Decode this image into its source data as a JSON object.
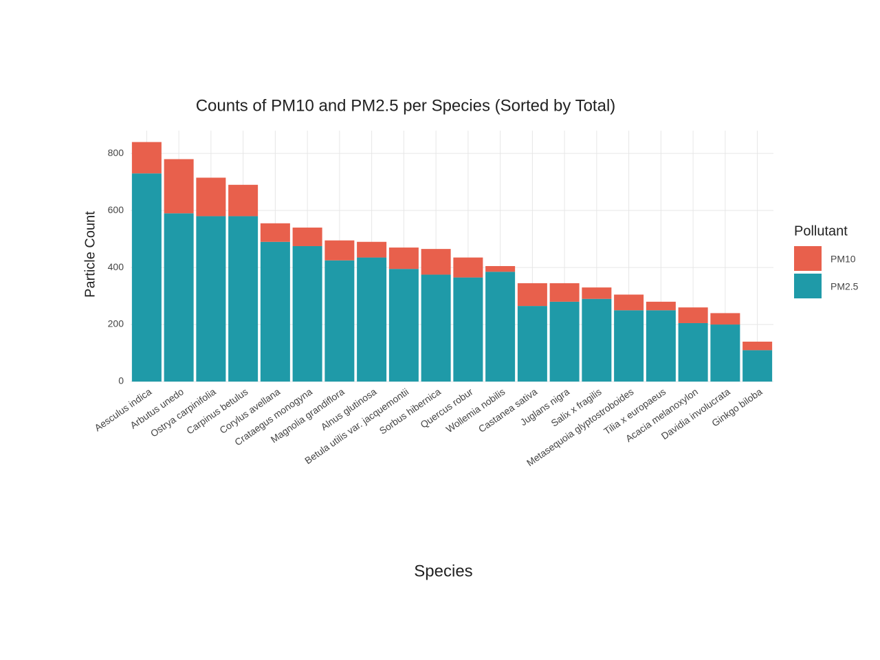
{
  "chart_data": {
    "type": "stacked_bar",
    "title": "Counts of PM10 and PM2.5 per Species (Sorted by Total)",
    "x_label": "Species",
    "y_label": "Particle Count",
    "legend_title": "Pollutant",
    "categories": [
      "Aesculus indica",
      "Arbutus unedo",
      "Ostrya carpinifolia",
      "Carpinus betulus",
      "Corylus avellana",
      "Crataegus monogyna",
      "Magnolia grandiflora",
      "Alnus glutinosa",
      "Betula utilis var. jacquemontii",
      "Sorbus hibernica",
      "Quercus robur",
      "Wollemia nobilis",
      "Castanea sativa",
      "Juglans nigra",
      "Salix x fragilis",
      "Metasequoia glyptostroboides",
      "Tilia x europaeus",
      "Acacia melanoxylon",
      "Davidia involucrata",
      "Ginkgo biloba"
    ],
    "series": [
      {
        "name": "PM10",
        "color": "#e8604c",
        "values": [
          110,
          190,
          135,
          110,
          65,
          65,
          70,
          55,
          75,
          90,
          70,
          20,
          80,
          65,
          40,
          55,
          30,
          55,
          40,
          30
        ]
      },
      {
        "name": "PM2.5",
        "color": "#1f9aa8",
        "values": [
          730,
          590,
          580,
          580,
          490,
          475,
          425,
          435,
          395,
          375,
          365,
          385,
          265,
          280,
          290,
          250,
          250,
          205,
          200,
          110
        ]
      }
    ],
    "ylim": [
      0,
      880
    ],
    "yticks": [
      0,
      200,
      400,
      600,
      800
    ],
    "grid": true,
    "legend": "right"
  }
}
